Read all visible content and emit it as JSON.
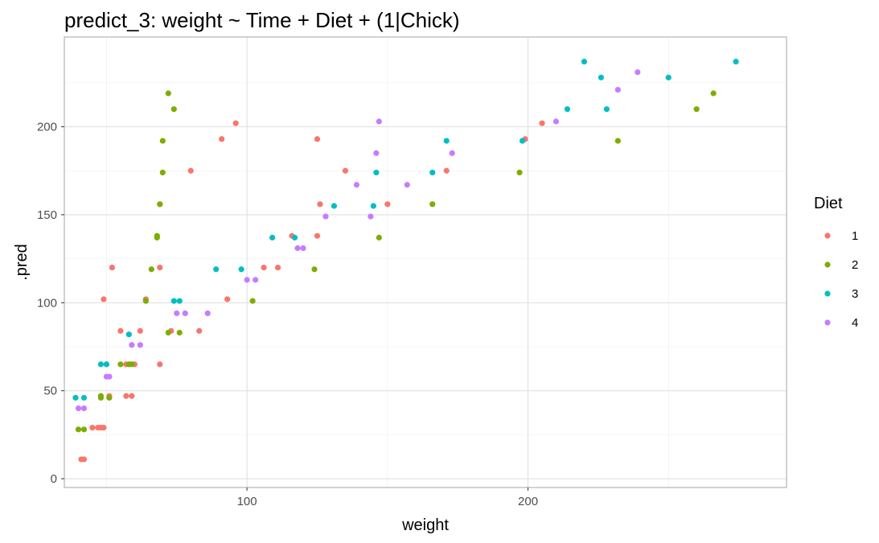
{
  "chart_data": {
    "type": "scatter",
    "title": "predict_3: weight ~ Time + Diet + (1|Chick)",
    "xlabel": "weight",
    "ylabel": ".pred",
    "xlim": [
      35,
      292
    ],
    "ylim": [
      -5,
      251
    ],
    "x_ticks": [
      {
        "value": 100,
        "label": "100"
      },
      {
        "value": 200,
        "label": "200"
      }
    ],
    "y_ticks": [
      {
        "value": 0,
        "label": "0"
      },
      {
        "value": 50,
        "label": "50"
      },
      {
        "value": 100,
        "label": "100"
      },
      {
        "value": 150,
        "label": "150"
      },
      {
        "value": 200,
        "label": "200"
      }
    ],
    "grid": true,
    "legend": {
      "title": "Diet",
      "position": "right"
    },
    "series": [
      {
        "name": "1",
        "color": "#F8766D",
        "points": [
          [
            41,
            11
          ],
          [
            42,
            11
          ],
          [
            45,
            29
          ],
          [
            47,
            29
          ],
          [
            48,
            29
          ],
          [
            49,
            29
          ],
          [
            49,
            102
          ],
          [
            50,
            65
          ],
          [
            51,
            47
          ],
          [
            52,
            120
          ],
          [
            55,
            84
          ],
          [
            57,
            47
          ],
          [
            57,
            65
          ],
          [
            59,
            47
          ],
          [
            60,
            65
          ],
          [
            62,
            84
          ],
          [
            64,
            102
          ],
          [
            69,
            120
          ],
          [
            69,
            156
          ],
          [
            69,
            65
          ],
          [
            73,
            84
          ],
          [
            80,
            175
          ],
          [
            83,
            84
          ],
          [
            91,
            193
          ],
          [
            93,
            102
          ],
          [
            96,
            202
          ],
          [
            106,
            120
          ],
          [
            111,
            120
          ],
          [
            116,
            138
          ],
          [
            125,
            193
          ],
          [
            125,
            138
          ],
          [
            126,
            156
          ],
          [
            135,
            175
          ],
          [
            150,
            156
          ],
          [
            171,
            175
          ],
          [
            199,
            193
          ],
          [
            205,
            202
          ]
        ]
      },
      {
        "name": "2",
        "color": "#7CAE00",
        "points": [
          [
            40,
            28
          ],
          [
            42,
            28
          ],
          [
            48,
            46
          ],
          [
            48,
            47
          ],
          [
            51,
            46
          ],
          [
            55,
            65
          ],
          [
            58,
            65
          ],
          [
            59,
            65
          ],
          [
            64,
            101
          ],
          [
            66,
            119
          ],
          [
            68,
            138
          ],
          [
            68,
            137
          ],
          [
            69,
            156
          ],
          [
            70,
            174
          ],
          [
            70,
            192
          ],
          [
            72,
            83
          ],
          [
            72,
            219
          ],
          [
            74,
            210
          ],
          [
            76,
            83
          ],
          [
            102,
            101
          ],
          [
            124,
            119
          ],
          [
            147,
            137
          ],
          [
            166,
            156
          ],
          [
            197,
            174
          ],
          [
            232,
            192
          ],
          [
            260,
            210
          ],
          [
            266,
            219
          ]
        ]
      },
      {
        "name": "3",
        "color": "#00BFC4",
        "points": [
          [
            39,
            46
          ],
          [
            42,
            46
          ],
          [
            48,
            65
          ],
          [
            50,
            65
          ],
          [
            58,
            82
          ],
          [
            74,
            101
          ],
          [
            76,
            101
          ],
          [
            89,
            119
          ],
          [
            98,
            119
          ],
          [
            109,
            137
          ],
          [
            117,
            137
          ],
          [
            131,
            155
          ],
          [
            145,
            155
          ],
          [
            146,
            174
          ],
          [
            166,
            174
          ],
          [
            171,
            192
          ],
          [
            198,
            192
          ],
          [
            214,
            210
          ],
          [
            220,
            237
          ],
          [
            226,
            228
          ],
          [
            228,
            210
          ],
          [
            250,
            228
          ],
          [
            274,
            237
          ]
        ]
      },
      {
        "name": "4",
        "color": "#C77CFF",
        "points": [
          [
            40,
            40
          ],
          [
            42,
            40
          ],
          [
            50,
            58
          ],
          [
            51,
            58
          ],
          [
            59,
            76
          ],
          [
            62,
            76
          ],
          [
            75,
            94
          ],
          [
            78,
            94
          ],
          [
            86,
            94
          ],
          [
            100,
            113
          ],
          [
            103,
            113
          ],
          [
            118,
            131
          ],
          [
            120,
            131
          ],
          [
            128,
            149
          ],
          [
            139,
            167
          ],
          [
            144,
            149
          ],
          [
            146,
            185
          ],
          [
            147,
            203
          ],
          [
            157,
            167
          ],
          [
            173,
            185
          ],
          [
            210,
            203
          ],
          [
            232,
            221
          ],
          [
            239,
            231
          ]
        ]
      }
    ]
  }
}
